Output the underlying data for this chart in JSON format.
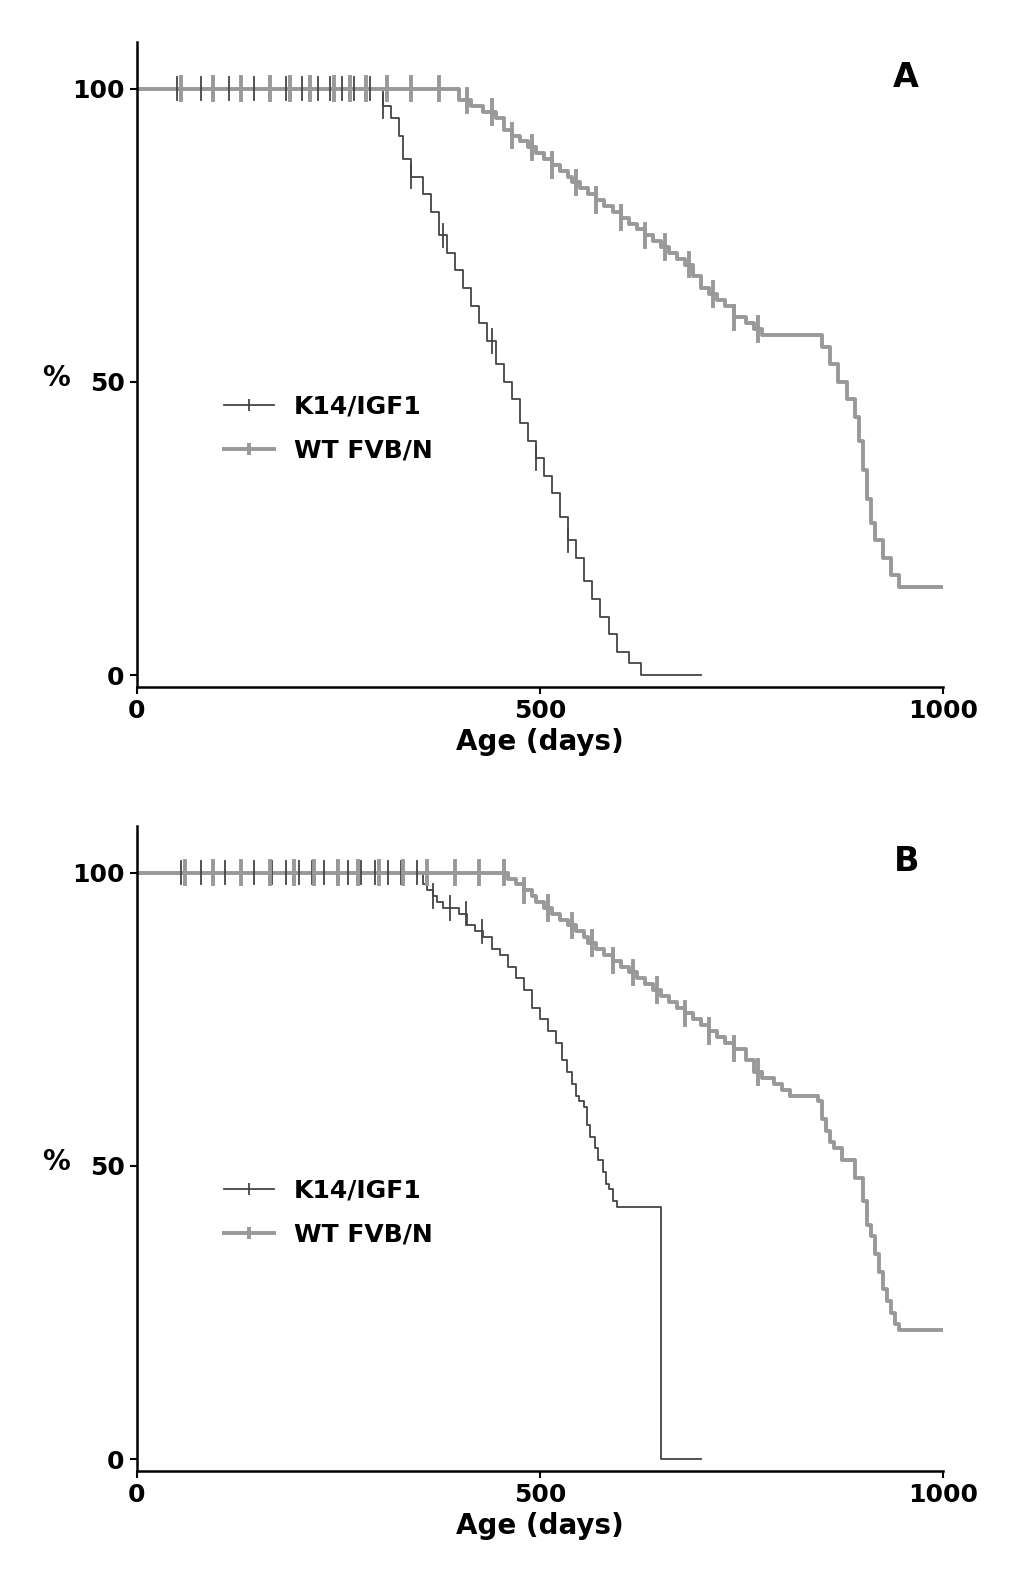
{
  "panel_A": {
    "label": "A",
    "xlim": [
      0,
      1000
    ],
    "ylim": [
      -2,
      108
    ],
    "xticks": [
      0,
      500,
      1000
    ],
    "xtick_labels": [
      "0",
      "500",
      "1000"
    ],
    "yticks": [
      0,
      50,
      100
    ],
    "ytick_labels": [
      "0",
      "50",
      "100"
    ],
    "xlabel": "Age (days)",
    "ylabel": "%",
    "k14_steps": [
      [
        0,
        100
      ],
      [
        300,
        100
      ],
      [
        305,
        97
      ],
      [
        315,
        95
      ],
      [
        325,
        92
      ],
      [
        330,
        88
      ],
      [
        340,
        85
      ],
      [
        355,
        82
      ],
      [
        365,
        79
      ],
      [
        375,
        75
      ],
      [
        385,
        72
      ],
      [
        395,
        69
      ],
      [
        405,
        66
      ],
      [
        415,
        63
      ],
      [
        425,
        60
      ],
      [
        435,
        57
      ],
      [
        445,
        53
      ],
      [
        455,
        50
      ],
      [
        465,
        47
      ],
      [
        475,
        43
      ],
      [
        485,
        40
      ],
      [
        495,
        37
      ],
      [
        505,
        34
      ],
      [
        515,
        31
      ],
      [
        525,
        27
      ],
      [
        535,
        23
      ],
      [
        545,
        20
      ],
      [
        555,
        16
      ],
      [
        565,
        13
      ],
      [
        575,
        10
      ],
      [
        585,
        7
      ],
      [
        595,
        4
      ],
      [
        610,
        2
      ],
      [
        625,
        0
      ],
      [
        700,
        0
      ]
    ],
    "wt_steps": [
      [
        0,
        100
      ],
      [
        390,
        100
      ],
      [
        400,
        98
      ],
      [
        415,
        97
      ],
      [
        430,
        96
      ],
      [
        445,
        95
      ],
      [
        455,
        93
      ],
      [
        465,
        92
      ],
      [
        475,
        91
      ],
      [
        485,
        90
      ],
      [
        495,
        89
      ],
      [
        505,
        88
      ],
      [
        515,
        87
      ],
      [
        525,
        86
      ],
      [
        535,
        85
      ],
      [
        540,
        84
      ],
      [
        550,
        83
      ],
      [
        560,
        82
      ],
      [
        570,
        81
      ],
      [
        580,
        80
      ],
      [
        590,
        79
      ],
      [
        600,
        78
      ],
      [
        610,
        77
      ],
      [
        620,
        76
      ],
      [
        630,
        75
      ],
      [
        640,
        74
      ],
      [
        650,
        73
      ],
      [
        660,
        72
      ],
      [
        670,
        71
      ],
      [
        680,
        70
      ],
      [
        690,
        68
      ],
      [
        700,
        66
      ],
      [
        710,
        65
      ],
      [
        720,
        64
      ],
      [
        730,
        63
      ],
      [
        740,
        61
      ],
      [
        755,
        60
      ],
      [
        765,
        59
      ],
      [
        775,
        58
      ],
      [
        790,
        58
      ],
      [
        840,
        58
      ],
      [
        850,
        56
      ],
      [
        860,
        53
      ],
      [
        870,
        50
      ],
      [
        880,
        47
      ],
      [
        890,
        44
      ],
      [
        895,
        40
      ],
      [
        900,
        35
      ],
      [
        905,
        30
      ],
      [
        910,
        26
      ],
      [
        915,
        23
      ],
      [
        925,
        20
      ],
      [
        935,
        17
      ],
      [
        945,
        15
      ],
      [
        960,
        15
      ],
      [
        1000,
        15
      ]
    ],
    "k14_censors_x": [
      50,
      80,
      115,
      145,
      165,
      185,
      205,
      225,
      240,
      255,
      270,
      290,
      305,
      340,
      380,
      440,
      495,
      535
    ],
    "wt_censors_x": [
      55,
      95,
      130,
      165,
      190,
      215,
      245,
      265,
      285,
      310,
      340,
      375,
      410,
      440,
      465,
      490,
      515,
      545,
      570,
      600,
      630,
      655,
      685,
      715,
      740,
      770
    ]
  },
  "panel_B": {
    "label": "B",
    "xlim": [
      0,
      1000
    ],
    "ylim": [
      -2,
      108
    ],
    "xticks": [
      0,
      500,
      1000
    ],
    "xtick_labels": [
      "0",
      "500",
      "1000"
    ],
    "yticks": [
      0,
      50,
      100
    ],
    "ytick_labels": [
      "0",
      "50",
      "100"
    ],
    "xlabel": "Age (days)",
    "ylabel": "%",
    "k14_steps": [
      [
        0,
        100
      ],
      [
        350,
        100
      ],
      [
        355,
        98
      ],
      [
        360,
        97
      ],
      [
        367,
        96
      ],
      [
        373,
        95
      ],
      [
        380,
        94
      ],
      [
        390,
        94
      ],
      [
        400,
        93
      ],
      [
        410,
        91
      ],
      [
        420,
        90
      ],
      [
        430,
        89
      ],
      [
        440,
        87
      ],
      [
        450,
        86
      ],
      [
        460,
        84
      ],
      [
        470,
        82
      ],
      [
        480,
        80
      ],
      [
        490,
        77
      ],
      [
        500,
        75
      ],
      [
        510,
        73
      ],
      [
        520,
        71
      ],
      [
        527,
        68
      ],
      [
        533,
        66
      ],
      [
        540,
        64
      ],
      [
        545,
        62
      ],
      [
        548,
        61
      ],
      [
        555,
        60
      ],
      [
        558,
        57
      ],
      [
        562,
        55
      ],
      [
        568,
        53
      ],
      [
        572,
        51
      ],
      [
        578,
        49
      ],
      [
        582,
        47
      ],
      [
        585,
        46
      ],
      [
        590,
        44
      ],
      [
        595,
        43
      ],
      [
        600,
        43
      ],
      [
        620,
        43
      ],
      [
        640,
        43
      ],
      [
        650,
        0
      ],
      [
        700,
        0
      ]
    ],
    "wt_steps": [
      [
        0,
        100
      ],
      [
        450,
        100
      ],
      [
        460,
        99
      ],
      [
        470,
        98
      ],
      [
        480,
        97
      ],
      [
        490,
        96
      ],
      [
        495,
        95
      ],
      [
        505,
        94
      ],
      [
        515,
        93
      ],
      [
        525,
        92
      ],
      [
        535,
        91
      ],
      [
        545,
        90
      ],
      [
        555,
        89
      ],
      [
        560,
        88
      ],
      [
        570,
        87
      ],
      [
        580,
        86
      ],
      [
        590,
        85
      ],
      [
        600,
        84
      ],
      [
        610,
        83
      ],
      [
        620,
        82
      ],
      [
        630,
        81
      ],
      [
        640,
        80
      ],
      [
        650,
        79
      ],
      [
        660,
        78
      ],
      [
        670,
        77
      ],
      [
        680,
        76
      ],
      [
        690,
        75
      ],
      [
        700,
        74
      ],
      [
        710,
        73
      ],
      [
        720,
        72
      ],
      [
        730,
        71
      ],
      [
        740,
        70
      ],
      [
        755,
        68
      ],
      [
        765,
        66
      ],
      [
        775,
        65
      ],
      [
        790,
        64
      ],
      [
        800,
        63
      ],
      [
        810,
        62
      ],
      [
        820,
        62
      ],
      [
        830,
        62
      ],
      [
        840,
        62
      ],
      [
        845,
        61
      ],
      [
        850,
        58
      ],
      [
        855,
        56
      ],
      [
        860,
        54
      ],
      [
        865,
        53
      ],
      [
        870,
        53
      ],
      [
        875,
        51
      ],
      [
        880,
        51
      ],
      [
        890,
        48
      ],
      [
        900,
        44
      ],
      [
        905,
        40
      ],
      [
        910,
        38
      ],
      [
        915,
        35
      ],
      [
        920,
        32
      ],
      [
        925,
        29
      ],
      [
        930,
        27
      ],
      [
        935,
        25
      ],
      [
        940,
        23
      ],
      [
        945,
        22
      ],
      [
        950,
        22
      ],
      [
        960,
        22
      ],
      [
        970,
        22
      ],
      [
        1000,
        22
      ]
    ],
    "k14_censors_x": [
      55,
      80,
      110,
      145,
      168,
      185,
      202,
      218,
      232,
      248,
      262,
      278,
      295,
      312,
      328,
      348,
      368,
      388,
      408,
      428
    ],
    "wt_censors_x": [
      60,
      95,
      130,
      165,
      195,
      220,
      250,
      275,
      300,
      330,
      360,
      395,
      425,
      455,
      480,
      510,
      540,
      565,
      590,
      615,
      645,
      680,
      710,
      740,
      770
    ]
  },
  "k14_color": "#444444",
  "wt_color": "#999999",
  "k14_linewidth": 1.3,
  "wt_linewidth": 2.8,
  "legend_k14": "K14/IGF1",
  "legend_wt": "WT FVB/N",
  "fontsize_tick": 18,
  "fontsize_label": 20,
  "fontsize_panel": 24,
  "tick_height": 4.0
}
